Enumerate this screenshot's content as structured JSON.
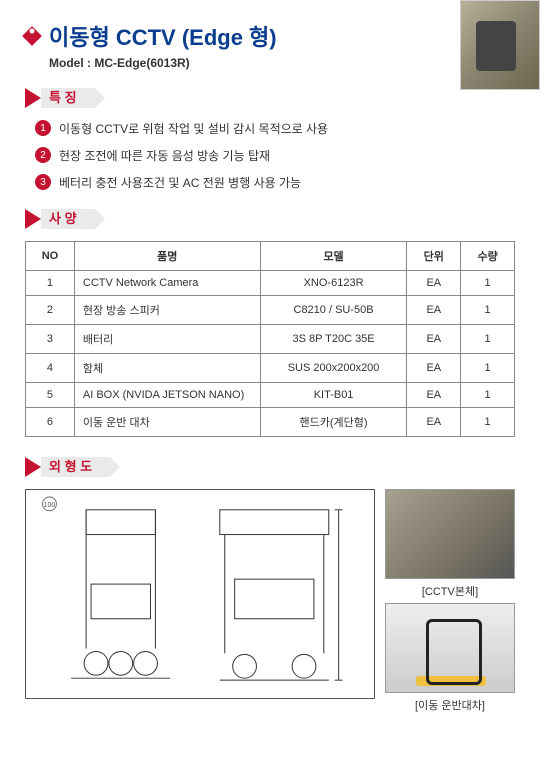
{
  "header": {
    "title": "이동형 CCTV (Edge 형)",
    "model_label": "Model  : MC-Edge(6013R)"
  },
  "sections": {
    "features_title": "특 징",
    "spec_title": "사 양",
    "outline_title": "외 형 도"
  },
  "features": [
    "이동형 CCTV로 위험 작업 및 설비 감시 목적으로 사용",
    "현장 조전에 따른 자동 음성 방송 기능 탑재",
    "베터리 충전 사용조건 및 AC 전원 병행 사용 가능"
  ],
  "spec_table": {
    "columns": [
      "NO",
      "품명",
      "모델",
      "단위",
      "수량"
    ],
    "col_widths": [
      "10%",
      "38%",
      "30%",
      "11%",
      "11%"
    ],
    "rows": [
      [
        "1",
        "CCTV Network Camera",
        "XNO-6123R",
        "EA",
        "1"
      ],
      [
        "2",
        "현장 방송 스피커",
        "C8210 / SU-50B",
        "EA",
        "1"
      ],
      [
        "3",
        "배터리",
        "3S 8P T20C 35E",
        "EA",
        "1"
      ],
      [
        "4",
        "함체",
        "SUS 200x200x200",
        "EA",
        "1"
      ],
      [
        "5",
        "AI BOX (NVIDA JETSON NANO)",
        "KIT-B01",
        "EA",
        "1"
      ],
      [
        "6",
        "이동 운반 대차",
        "핸드카(계단형)",
        "EA",
        "1"
      ]
    ]
  },
  "outline": {
    "photo1_label": "[CCTV본체]",
    "photo2_label": "[이동 운반대차]"
  },
  "colors": {
    "accent_red": "#c41230",
    "title_blue": "#0a3d8f",
    "border_gray": "#888888"
  }
}
